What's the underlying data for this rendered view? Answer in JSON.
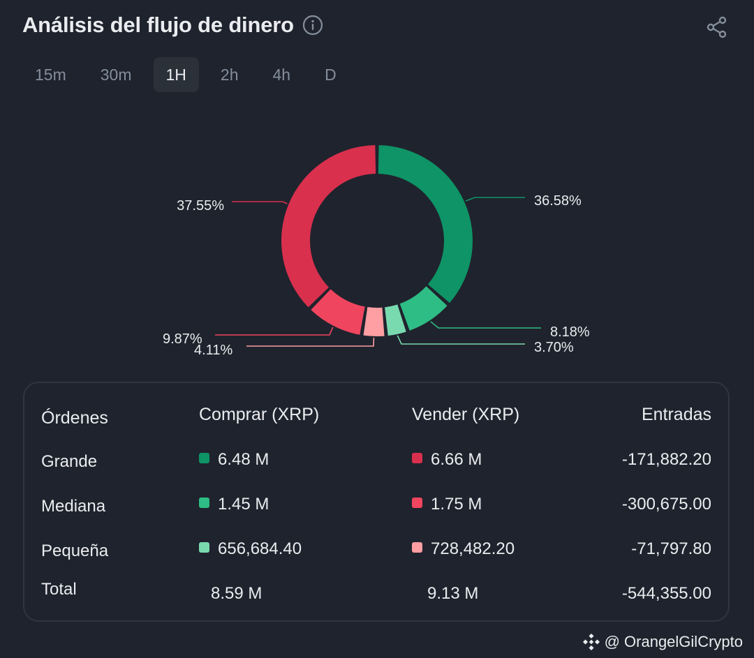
{
  "header": {
    "title": "Análisis del flujo de dinero"
  },
  "icons": {
    "info": "info-icon",
    "share": "share-icon",
    "brand": "binance-logo-icon"
  },
  "tabs": [
    {
      "label": "15m",
      "active": false
    },
    {
      "label": "30m",
      "active": false
    },
    {
      "label": "1H",
      "active": true
    },
    {
      "label": "2h",
      "active": false
    },
    {
      "label": "4h",
      "active": false
    },
    {
      "label": "D",
      "active": false
    }
  ],
  "colors": {
    "large_buy": "#0e9466",
    "medium_buy": "#2ebd85",
    "small_buy": "#79dab0",
    "large_sell": "#d9304e",
    "medium_sell": "#f0455f",
    "small_sell": "#ff9ea3"
  },
  "chart_data": {
    "type": "pie",
    "donut": true,
    "slices": [
      {
        "label": "36.58%",
        "value": 36.58,
        "color": "#0e9466"
      },
      {
        "label": "8.18%",
        "value": 8.18,
        "color": "#2ebd85"
      },
      {
        "label": "3.70%",
        "value": 3.7,
        "color": "#79dab0"
      },
      {
        "label": "4.11%",
        "value": 4.11,
        "color": "#ff9ea3"
      },
      {
        "label": "9.87%",
        "value": 9.87,
        "color": "#f0455f"
      },
      {
        "label": "37.55%",
        "value": 37.55,
        "color": "#d9304e"
      }
    ]
  },
  "table": {
    "headers": {
      "orders": "Órdenes",
      "buy": "Comprar (XRP)",
      "sell": "Vender (XRP)",
      "inflow": "Entradas"
    },
    "rows": [
      {
        "label": "Grande",
        "buy": "6.48 M",
        "sell": "6.66 M",
        "inflow": "-171,882.20"
      },
      {
        "label": "Mediana",
        "buy": "1.45 M",
        "sell": "1.75 M",
        "inflow": "-300,675.00"
      },
      {
        "label": "Pequeña",
        "buy": "656,684.40",
        "sell": "728,482.20",
        "inflow": "-71,797.80"
      },
      {
        "label": "Total",
        "buy": "8.59 M",
        "sell": "9.13 M",
        "inflow": "-544,355.00"
      }
    ]
  },
  "watermark": {
    "text": "@ OrangelGilCrypto"
  }
}
